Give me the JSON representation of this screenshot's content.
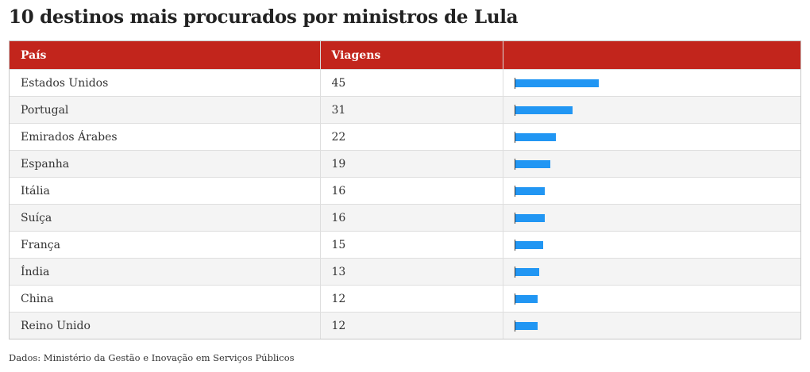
{
  "title": "10 destinos mais procurados por ministros de Lula",
  "headers": {
    "country": "País",
    "trips": "Viagens",
    "bar": ""
  },
  "source": "Dados: Ministério da Gestão e Inovação em Serviços Públicos",
  "colors": {
    "header_bg": "#c2251c",
    "bar": "#2196f3"
  },
  "chart_data": {
    "type": "table",
    "columns": [
      "País",
      "Viagens"
    ],
    "categories": [
      "Estados Unidos",
      "Portugal",
      "Emirados Árabes",
      "Espanha",
      "Itália",
      "Suíça",
      "França",
      "Índia",
      "China",
      "Reino Unido"
    ],
    "values": [
      45,
      31,
      22,
      19,
      16,
      16,
      15,
      13,
      12,
      12
    ],
    "bar_max": 150,
    "title": "10 destinos mais procurados por ministros de Lula"
  }
}
